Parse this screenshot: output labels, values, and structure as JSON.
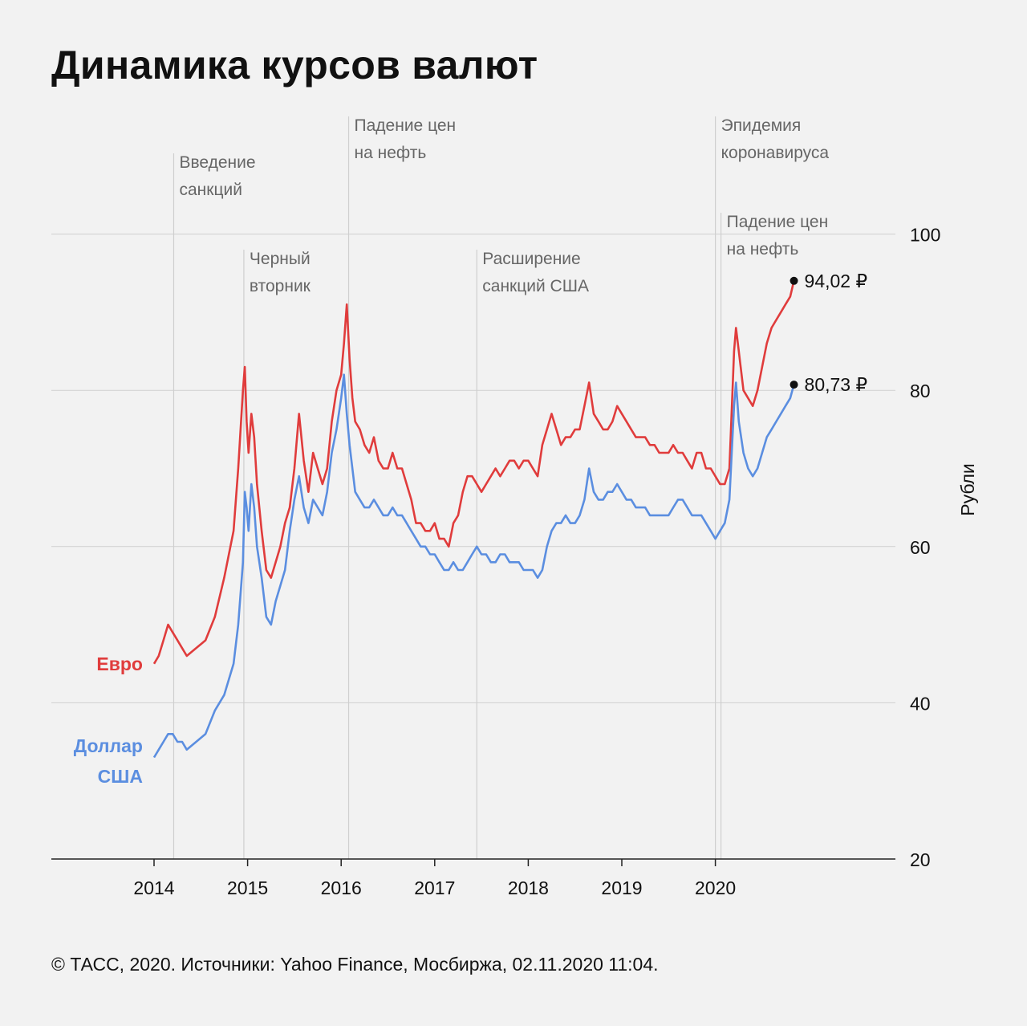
{
  "title": "Динамика курсов валют",
  "footer": "© ТАСС, 2020. Источники: Yahoo Finance, Мосбиржа, 02.11.2020 11:04.",
  "colors": {
    "euro": "#e03c3c",
    "usd": "#5b8ee0",
    "grid": "#cfcfcf",
    "axis": "#222222",
    "annotation_text": "#666666"
  },
  "chart_data": {
    "type": "line",
    "title": "Динамика курсов валют",
    "ylabel": "Рубли",
    "xlabel": "",
    "xlim": [
      2014.0,
      2021.0
    ],
    "ylim": [
      20,
      100
    ],
    "yticks": [
      20,
      40,
      60,
      80,
      100
    ],
    "xticks": [
      "2014",
      "2015",
      "2016",
      "2017",
      "2018",
      "2019",
      "2020"
    ],
    "grid": true,
    "series": [
      {
        "name": "Евро",
        "color": "#e03c3c",
        "end_label": "94,02 ₽",
        "x": [
          2014.0,
          2014.05,
          2014.1,
          2014.15,
          2014.2,
          2014.25,
          2014.3,
          2014.35,
          2014.45,
          2014.55,
          2014.65,
          2014.75,
          2014.85,
          2014.9,
          2014.95,
          2014.97,
          2014.99,
          2015.01,
          2015.04,
          2015.07,
          2015.1,
          2015.15,
          2015.2,
          2015.25,
          2015.3,
          2015.35,
          2015.4,
          2015.45,
          2015.5,
          2015.55,
          2015.6,
          2015.65,
          2015.7,
          2015.75,
          2015.8,
          2015.85,
          2015.9,
          2015.95,
          2016.0,
          2016.03,
          2016.06,
          2016.09,
          2016.12,
          2016.15,
          2016.2,
          2016.25,
          2016.3,
          2016.35,
          2016.4,
          2016.45,
          2016.5,
          2016.55,
          2016.6,
          2016.65,
          2016.7,
          2016.75,
          2016.8,
          2016.85,
          2016.9,
          2016.95,
          2017.0,
          2017.05,
          2017.1,
          2017.15,
          2017.2,
          2017.25,
          2017.3,
          2017.35,
          2017.4,
          2017.45,
          2017.5,
          2017.55,
          2017.6,
          2017.65,
          2017.7,
          2017.75,
          2017.8,
          2017.85,
          2017.9,
          2017.95,
          2018.0,
          2018.05,
          2018.1,
          2018.15,
          2018.2,
          2018.25,
          2018.3,
          2018.35,
          2018.4,
          2018.45,
          2018.5,
          2018.55,
          2018.6,
          2018.65,
          2018.7,
          2018.75,
          2018.8,
          2018.85,
          2018.9,
          2018.95,
          2019.0,
          2019.05,
          2019.1,
          2019.15,
          2019.2,
          2019.25,
          2019.3,
          2019.35,
          2019.4,
          2019.45,
          2019.5,
          2019.55,
          2019.6,
          2019.65,
          2019.7,
          2019.75,
          2019.8,
          2019.85,
          2019.9,
          2019.95,
          2020.0,
          2020.05,
          2020.1,
          2020.15,
          2020.2,
          2020.22,
          2020.25,
          2020.3,
          2020.35,
          2020.4,
          2020.45,
          2020.5,
          2020.55,
          2020.6,
          2020.65,
          2020.7,
          2020.75,
          2020.8,
          2020.84
        ],
        "values": [
          45,
          46,
          48,
          50,
          49,
          48,
          47,
          46,
          47,
          48,
          51,
          56,
          62,
          70,
          80,
          83,
          76,
          72,
          77,
          74,
          68,
          62,
          57,
          56,
          58,
          60,
          63,
          65,
          70,
          77,
          71,
          67,
          72,
          70,
          68,
          70,
          76,
          80,
          82,
          86,
          91,
          84,
          79,
          76,
          75,
          73,
          72,
          74,
          71,
          70,
          70,
          72,
          70,
          70,
          68,
          66,
          63,
          63,
          62,
          62,
          63,
          61,
          61,
          60,
          63,
          64,
          67,
          69,
          69,
          68,
          67,
          68,
          69,
          70,
          69,
          70,
          71,
          71,
          70,
          71,
          71,
          70,
          69,
          73,
          75,
          77,
          75,
          73,
          74,
          74,
          75,
          75,
          78,
          81,
          77,
          76,
          75,
          75,
          76,
          78,
          77,
          76,
          75,
          74,
          74,
          74,
          73,
          73,
          72,
          72,
          72,
          73,
          72,
          72,
          71,
          70,
          72,
          72,
          70,
          70,
          69,
          68,
          68,
          70,
          85,
          88,
          85,
          80,
          79,
          78,
          80,
          83,
          86,
          88,
          89,
          90,
          91,
          92,
          94.02
        ]
      },
      {
        "name": "Доллар США",
        "color": "#5b8ee0",
        "end_label": "80,73 ₽",
        "x": [
          2014.0,
          2014.05,
          2014.1,
          2014.15,
          2014.2,
          2014.25,
          2014.3,
          2014.35,
          2014.45,
          2014.55,
          2014.65,
          2014.75,
          2014.85,
          2014.9,
          2014.95,
          2014.97,
          2014.99,
          2015.01,
          2015.04,
          2015.07,
          2015.1,
          2015.15,
          2015.2,
          2015.25,
          2015.3,
          2015.35,
          2015.4,
          2015.45,
          2015.5,
          2015.55,
          2015.6,
          2015.65,
          2015.7,
          2015.75,
          2015.8,
          2015.85,
          2015.9,
          2015.95,
          2016.0,
          2016.03,
          2016.06,
          2016.09,
          2016.12,
          2016.15,
          2016.2,
          2016.25,
          2016.3,
          2016.35,
          2016.4,
          2016.45,
          2016.5,
          2016.55,
          2016.6,
          2016.65,
          2016.7,
          2016.75,
          2016.8,
          2016.85,
          2016.9,
          2016.95,
          2017.0,
          2017.05,
          2017.1,
          2017.15,
          2017.2,
          2017.25,
          2017.3,
          2017.35,
          2017.4,
          2017.45,
          2017.5,
          2017.55,
          2017.6,
          2017.65,
          2017.7,
          2017.75,
          2017.8,
          2017.85,
          2017.9,
          2017.95,
          2018.0,
          2018.05,
          2018.1,
          2018.15,
          2018.2,
          2018.25,
          2018.3,
          2018.35,
          2018.4,
          2018.45,
          2018.5,
          2018.55,
          2018.6,
          2018.65,
          2018.7,
          2018.75,
          2018.8,
          2018.85,
          2018.9,
          2018.95,
          2019.0,
          2019.05,
          2019.1,
          2019.15,
          2019.2,
          2019.25,
          2019.3,
          2019.35,
          2019.4,
          2019.45,
          2019.5,
          2019.55,
          2019.6,
          2019.65,
          2019.7,
          2019.75,
          2019.8,
          2019.85,
          2019.9,
          2019.95,
          2020.0,
          2020.05,
          2020.1,
          2020.15,
          2020.2,
          2020.22,
          2020.25,
          2020.3,
          2020.35,
          2020.4,
          2020.45,
          2020.5,
          2020.55,
          2020.6,
          2020.65,
          2020.7,
          2020.75,
          2020.8,
          2020.84
        ],
        "values": [
          33,
          34,
          35,
          36,
          36,
          35,
          35,
          34,
          35,
          36,
          39,
          41,
          45,
          50,
          58,
          67,
          65,
          62,
          68,
          65,
          60,
          56,
          51,
          50,
          53,
          55,
          57,
          62,
          66,
          69,
          65,
          63,
          66,
          65,
          64,
          67,
          72,
          75,
          79,
          82,
          77,
          73,
          70,
          67,
          66,
          65,
          65,
          66,
          65,
          64,
          64,
          65,
          64,
          64,
          63,
          62,
          61,
          60,
          60,
          59,
          59,
          58,
          57,
          57,
          58,
          57,
          57,
          58,
          59,
          60,
          59,
          59,
          58,
          58,
          59,
          59,
          58,
          58,
          58,
          57,
          57,
          57,
          56,
          57,
          60,
          62,
          63,
          63,
          64,
          63,
          63,
          64,
          66,
          70,
          67,
          66,
          66,
          67,
          67,
          68,
          67,
          66,
          66,
          65,
          65,
          65,
          64,
          64,
          64,
          64,
          64,
          65,
          66,
          66,
          65,
          64,
          64,
          64,
          63,
          62,
          61,
          62,
          63,
          66,
          78,
          81,
          76,
          72,
          70,
          69,
          70,
          72,
          74,
          75,
          76,
          77,
          78,
          79,
          80.73
        ]
      }
    ],
    "annotations": [
      {
        "x": 2014.21,
        "text_lines": [
          "Введение",
          "санкций"
        ],
        "row": 2
      },
      {
        "x": 2014.96,
        "text_lines": [
          "Черный",
          "вторник"
        ],
        "row": 3
      },
      {
        "x": 2016.08,
        "text_lines": [
          "Падение цен",
          "на нефть"
        ],
        "row": 1
      },
      {
        "x": 2017.45,
        "text_lines": [
          "Расширение",
          "санкций США"
        ],
        "row": 3
      },
      {
        "x": 2020.0,
        "text_lines": [
          "Эпидемия",
          "коронавируса"
        ],
        "row": 1
      },
      {
        "x": 2020.06,
        "text_lines": [
          "Падение цен",
          "на нефть"
        ],
        "row": 2
      }
    ]
  }
}
